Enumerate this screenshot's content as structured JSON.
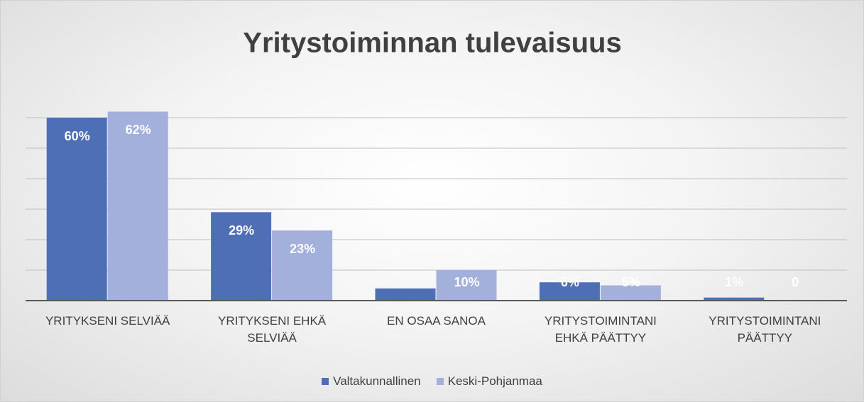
{
  "chart_data": {
    "type": "bar",
    "title": "Yritystoiminnan tulevaisuus",
    "categories": [
      "YRITYKSENI SELVIÄÄ",
      "YRITYKSENI EHKÄ SELVIÄÄ",
      "EN OSAA SANOA",
      "YRITYSTOIMINTANI EHKÄ PÄÄTTYY",
      "YRITYSTOIMINTANI PÄÄTTYY"
    ],
    "series": [
      {
        "name": "Valtakunnallinen",
        "color": "#4e6fb6",
        "values": [
          60,
          29,
          4,
          6,
          1
        ],
        "value_labels": [
          "60%",
          "29%",
          null,
          "6%",
          "1%"
        ]
      },
      {
        "name": "Keski-Pohjanmaa",
        "color": "#a3b0dc",
        "values": [
          62,
          23,
          10,
          5,
          0
        ],
        "value_labels": [
          "62%",
          "23%",
          "10%",
          "5%",
          "0"
        ]
      }
    ],
    "ylim": [
      0,
      70
    ],
    "yticks": [
      0,
      10,
      20,
      30,
      40,
      50,
      60
    ],
    "grid": true,
    "legend": "bottom"
  }
}
